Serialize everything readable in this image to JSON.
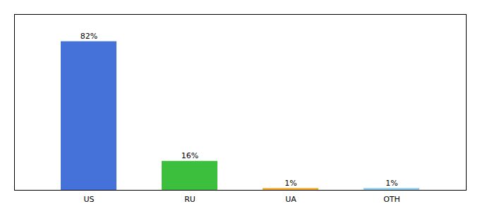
{
  "chart_data": {
    "type": "bar",
    "categories": [
      "US",
      "RU",
      "UA",
      "OTH"
    ],
    "values": [
      82,
      16,
      1,
      1
    ],
    "value_labels": [
      "82%",
      "16%",
      "1%",
      "1%"
    ],
    "colors": [
      "#4472d9",
      "#3cbf3c",
      "#f5a623",
      "#87ceeb"
    ],
    "ylim": [
      0,
      97
    ],
    "data_labels": true,
    "tick_labels": "x",
    "grid": false
  }
}
